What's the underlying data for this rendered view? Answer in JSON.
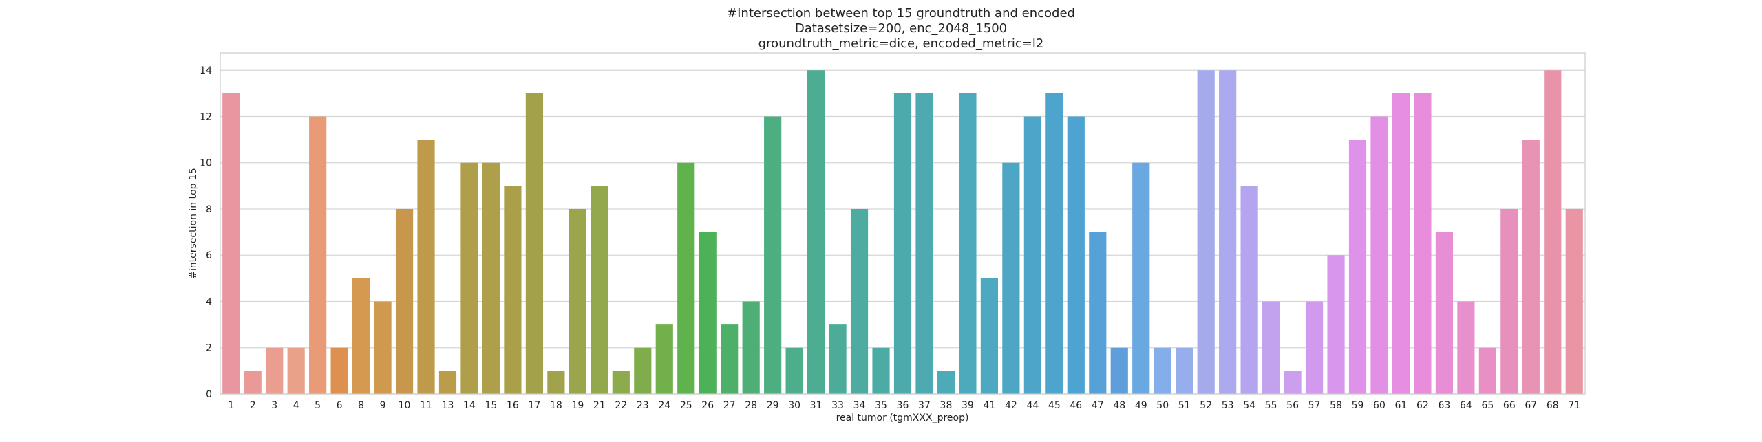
{
  "chart_data": {
    "type": "bar",
    "title_lines": [
      "#Intersection between top 15 groundtruth and encoded",
      "Datasetsize=200, enc_2048_1500",
      "groundtruth_metric=dice, encoded_metric=l2"
    ],
    "xlabel": "real tumor (tgmXXX_preop)",
    "ylabel": "#intersection in top 15",
    "ylim": [
      0,
      14.75
    ],
    "yticks": [
      0,
      2,
      4,
      6,
      8,
      10,
      12,
      14
    ],
    "grid": true,
    "categories": [
      "1",
      "2",
      "3",
      "4",
      "5",
      "6",
      "8",
      "9",
      "10",
      "11",
      "13",
      "14",
      "15",
      "16",
      "17",
      "18",
      "19",
      "21",
      "22",
      "23",
      "24",
      "25",
      "26",
      "27",
      "28",
      "29",
      "30",
      "31",
      "33",
      "34",
      "35",
      "36",
      "37",
      "38",
      "39",
      "41",
      "42",
      "44",
      "45",
      "46",
      "47",
      "48",
      "49",
      "50",
      "51",
      "52",
      "53",
      "54",
      "55",
      "56",
      "57",
      "58",
      "59",
      "60",
      "61",
      "62",
      "63",
      "64",
      "65",
      "66",
      "67",
      "68",
      "71"
    ],
    "values": [
      13,
      1,
      2,
      2,
      12,
      2,
      5,
      4,
      8,
      11,
      1,
      10,
      10,
      9,
      13,
      1,
      8,
      9,
      1,
      2,
      3,
      10,
      7,
      3,
      4,
      12,
      2,
      14,
      3,
      8,
      2,
      13,
      13,
      1,
      13,
      5,
      10,
      12,
      13,
      12,
      7,
      2,
      10,
      2,
      2,
      14,
      14,
      9,
      4,
      1,
      4,
      6,
      11,
      12,
      13,
      13,
      7,
      4,
      2,
      8,
      11,
      14,
      8
    ],
    "colors": [
      "#e8969f",
      "#e99a96",
      "#e99e8f",
      "#e9a289",
      "#e99a76",
      "#de9050",
      "#d59a50",
      "#d09a4e",
      "#c7984b",
      "#be9a4a",
      "#bb9b4c",
      "#b09f4a",
      "#ae9f4a",
      "#aaa04a",
      "#a3a24b",
      "#a0a34b",
      "#9aa54c",
      "#93a84c",
      "#8daa4c",
      "#80ad4c",
      "#72b04c",
      "#5fb24c",
      "#4db158",
      "#4db068",
      "#4daf76",
      "#4dae82",
      "#4dae8b",
      "#4dad92",
      "#4dac99",
      "#4dab9f",
      "#4daba6",
      "#4daaac",
      "#4daab1",
      "#4daab7",
      "#4da9bc",
      "#4da8c0",
      "#4da7c4",
      "#4da6c9",
      "#4da5ce",
      "#4da4d3",
      "#56a1d8",
      "#5e9fdb",
      "#6aa8e2",
      "#83aeea",
      "#96aeec",
      "#a5aaed",
      "#aca9ee",
      "#b5a5ee",
      "#c2a2ee",
      "#cb9eee",
      "#d29aee",
      "#d896ec",
      "#de92ea",
      "#e290e6",
      "#e58ee2",
      "#e78ddc",
      "#e88ed5",
      "#e88fce",
      "#e890c6",
      "#e890bd",
      "#e892b4",
      "#e993ab",
      "#e995a3"
    ]
  }
}
